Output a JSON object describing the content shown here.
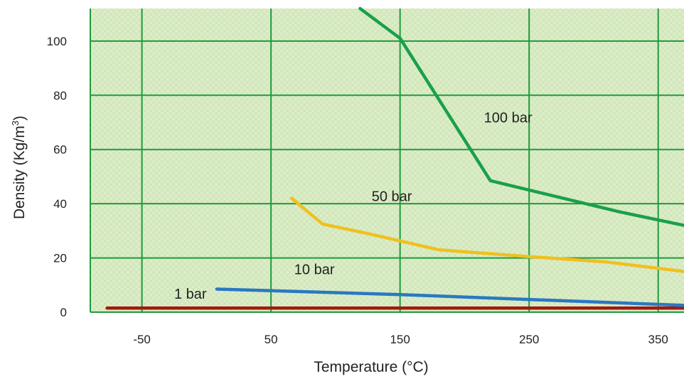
{
  "chart_data": {
    "type": "line",
    "xlabel": "Temperature (°C)",
    "ylabel_main": "Density (Kg/m",
    "ylabel_sup": "3",
    "ylabel_close": ")",
    "xlim": [
      -40,
      420
    ],
    "ylim": [
      0,
      112
    ],
    "grid": true,
    "x_ticks": [
      {
        "value": 0,
        "label": "-50"
      },
      {
        "value": 100,
        "label": "50"
      },
      {
        "value": 200,
        "label": "150"
      },
      {
        "value": 300,
        "label": "250"
      },
      {
        "value": 400,
        "label": "350"
      }
    ],
    "y_ticks": [
      0,
      20,
      40,
      60,
      80,
      100
    ],
    "series": [
      {
        "name": "1 bar",
        "color": "#a01a10",
        "points": [
          [
            -27,
            1.5
          ],
          [
            420,
            1.5
          ]
        ],
        "label_at": [
          25,
          5
        ]
      },
      {
        "name": "10 bar",
        "color": "#2a78c2",
        "points": [
          [
            58,
            8.5
          ],
          [
            200,
            6.5
          ],
          [
            420,
            2.5
          ]
        ],
        "label_at": [
          118,
          14
        ]
      },
      {
        "name": "50 bar",
        "color": "#f0c020",
        "points": [
          [
            116,
            42
          ],
          [
            140,
            32.5
          ],
          [
            175,
            29
          ],
          [
            230,
            23
          ],
          [
            300,
            20.5
          ],
          [
            360,
            18.5
          ],
          [
            420,
            15
          ]
        ],
        "label_at": [
          178,
          41
        ]
      },
      {
        "name": "100 bar",
        "color": "#1aa04a",
        "points": [
          [
            169,
            112
          ],
          [
            200,
            101
          ],
          [
            270,
            48.5
          ],
          [
            370,
            37
          ],
          [
            420,
            32
          ]
        ],
        "label_at": [
          265,
          70
        ]
      }
    ]
  }
}
